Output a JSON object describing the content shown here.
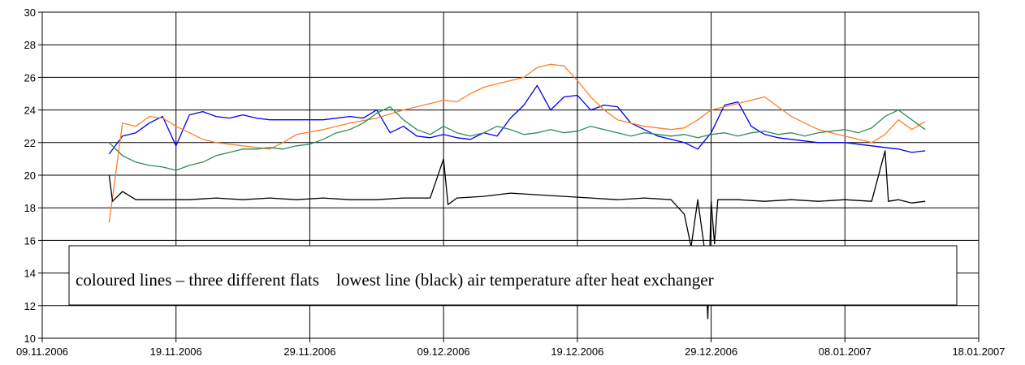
{
  "chart_data": {
    "type": "line",
    "title": "",
    "xlabel": "",
    "ylabel": "",
    "grid": true,
    "legend": "none",
    "x_range": [
      "2006-11-09",
      "2007-01-18"
    ],
    "ylim": [
      10,
      30
    ],
    "y_ticks": [
      10,
      12,
      14,
      16,
      18,
      20,
      22,
      24,
      26,
      28,
      30
    ],
    "x_ticks": [
      {
        "date": "2006-11-09",
        "label": "09.11.2006"
      },
      {
        "date": "2006-11-19",
        "label": "19.11.2006"
      },
      {
        "date": "2006-11-29",
        "label": "29.11.2006"
      },
      {
        "date": "2006-12-09",
        "label": "09.12.2006"
      },
      {
        "date": "2006-12-19",
        "label": "19.12.2006"
      },
      {
        "date": "2006-12-29",
        "label": "29.12.2006"
      },
      {
        "date": "2007-01-08",
        "label": "08.01.2007"
      },
      {
        "date": "2007-01-18",
        "label": "18.01.2007"
      }
    ],
    "annotation": "coloured lines – three different flats    lowest line (black) air temperature after heat exchanger",
    "series": [
      {
        "color": "#0000ee",
        "points": [
          [
            "2006-11-14",
            21.3
          ],
          [
            "2006-11-15",
            22.4
          ],
          [
            "2006-11-16",
            22.6
          ],
          [
            "2006-11-17",
            23.2
          ],
          [
            "2006-11-18",
            23.6
          ],
          [
            "2006-11-19",
            21.8
          ],
          [
            "2006-11-20",
            23.7
          ],
          [
            "2006-11-21",
            23.9
          ],
          [
            "2006-11-22",
            23.6
          ],
          [
            "2006-11-23",
            23.5
          ],
          [
            "2006-11-24",
            23.7
          ],
          [
            "2006-11-25",
            23.5
          ],
          [
            "2006-11-26",
            23.4
          ],
          [
            "2006-11-28",
            23.4
          ],
          [
            "2006-11-30",
            23.4
          ],
          [
            "2006-12-02",
            23.6
          ],
          [
            "2006-12-03",
            23.5
          ],
          [
            "2006-12-04",
            24.0
          ],
          [
            "2006-12-05",
            22.6
          ],
          [
            "2006-12-06",
            23.0
          ],
          [
            "2006-12-07",
            22.4
          ],
          [
            "2006-12-08",
            22.3
          ],
          [
            "2006-12-09",
            22.5
          ],
          [
            "2006-12-10",
            22.3
          ],
          [
            "2006-12-11",
            22.2
          ],
          [
            "2006-12-12",
            22.6
          ],
          [
            "2006-12-13",
            22.4
          ],
          [
            "2006-12-14",
            23.5
          ],
          [
            "2006-12-15",
            24.3
          ],
          [
            "2006-12-16",
            25.5
          ],
          [
            "2006-12-17",
            24.0
          ],
          [
            "2006-12-18",
            24.8
          ],
          [
            "2006-12-19",
            24.9
          ],
          [
            "2006-12-20",
            24.0
          ],
          [
            "2006-12-21",
            24.3
          ],
          [
            "2006-12-22",
            24.2
          ],
          [
            "2006-12-23",
            23.2
          ],
          [
            "2006-12-24",
            22.8
          ],
          [
            "2006-12-25",
            22.4
          ],
          [
            "2006-12-26",
            22.2
          ],
          [
            "2006-12-27",
            22.0
          ],
          [
            "2006-12-28",
            21.6
          ],
          [
            "2006-12-29",
            22.6
          ],
          [
            "2006-12-30",
            24.3
          ],
          [
            "2006-12-31",
            24.5
          ],
          [
            "2007-01-01",
            23.0
          ],
          [
            "2007-01-02",
            22.5
          ],
          [
            "2007-01-03",
            22.3
          ],
          [
            "2007-01-04",
            22.2
          ],
          [
            "2007-01-05",
            22.1
          ],
          [
            "2007-01-06",
            22.0
          ],
          [
            "2007-01-07",
            22.0
          ],
          [
            "2007-01-08",
            22.0
          ],
          [
            "2007-01-09",
            21.9
          ],
          [
            "2007-01-10",
            21.8
          ],
          [
            "2007-01-11",
            21.7
          ],
          [
            "2007-01-12",
            21.6
          ],
          [
            "2007-01-13",
            21.4
          ],
          [
            "2007-01-14",
            21.5
          ]
        ]
      },
      {
        "color": "#ff7f27",
        "points": [
          [
            "2006-11-14",
            17.1
          ],
          [
            "2006-11-15",
            23.2
          ],
          [
            "2006-11-16",
            23.0
          ],
          [
            "2006-11-17",
            23.6
          ],
          [
            "2006-11-18",
            23.5
          ],
          [
            "2006-11-19",
            23.0
          ],
          [
            "2006-11-20",
            22.6
          ],
          [
            "2006-11-21",
            22.2
          ],
          [
            "2006-11-22",
            22.0
          ],
          [
            "2006-11-23",
            21.9
          ],
          [
            "2006-11-24",
            21.8
          ],
          [
            "2006-11-25",
            21.7
          ],
          [
            "2006-11-26",
            21.6
          ],
          [
            "2006-11-27",
            22.0
          ],
          [
            "2006-11-28",
            22.5
          ],
          [
            "2006-11-30",
            22.8
          ],
          [
            "2006-12-02",
            23.2
          ],
          [
            "2006-12-04",
            23.5
          ],
          [
            "2006-12-06",
            24.0
          ],
          [
            "2006-12-08",
            24.4
          ],
          [
            "2006-12-09",
            24.6
          ],
          [
            "2006-12-10",
            24.5
          ],
          [
            "2006-12-11",
            25.0
          ],
          [
            "2006-12-12",
            25.4
          ],
          [
            "2006-12-13",
            25.6
          ],
          [
            "2006-12-14",
            25.8
          ],
          [
            "2006-12-15",
            26.0
          ],
          [
            "2006-12-16",
            26.6
          ],
          [
            "2006-12-17",
            26.8
          ],
          [
            "2006-12-18",
            26.7
          ],
          [
            "2006-12-19",
            25.8
          ],
          [
            "2006-12-20",
            24.8
          ],
          [
            "2006-12-21",
            24.0
          ],
          [
            "2006-12-22",
            23.4
          ],
          [
            "2006-12-23",
            23.2
          ],
          [
            "2006-12-24",
            23.0
          ],
          [
            "2006-12-25",
            22.9
          ],
          [
            "2006-12-26",
            22.8
          ],
          [
            "2006-12-27",
            22.9
          ],
          [
            "2006-12-28",
            23.4
          ],
          [
            "2006-12-29",
            24.0
          ],
          [
            "2006-12-30",
            24.2
          ],
          [
            "2006-12-31",
            24.4
          ],
          [
            "2007-01-01",
            24.6
          ],
          [
            "2007-01-02",
            24.8
          ],
          [
            "2007-01-03",
            24.2
          ],
          [
            "2007-01-04",
            23.6
          ],
          [
            "2007-01-05",
            23.2
          ],
          [
            "2007-01-06",
            22.8
          ],
          [
            "2007-01-07",
            22.6
          ],
          [
            "2007-01-08",
            22.4
          ],
          [
            "2007-01-09",
            22.2
          ],
          [
            "2007-01-10",
            22.0
          ],
          [
            "2007-01-11",
            22.5
          ],
          [
            "2007-01-12",
            23.4
          ],
          [
            "2007-01-13",
            22.8
          ],
          [
            "2007-01-14",
            23.3
          ]
        ]
      },
      {
        "color": "#2e8b57",
        "points": [
          [
            "2006-11-14",
            22.0
          ],
          [
            "2006-11-15",
            21.2
          ],
          [
            "2006-11-16",
            20.8
          ],
          [
            "2006-11-17",
            20.6
          ],
          [
            "2006-11-18",
            20.5
          ],
          [
            "2006-11-19",
            20.3
          ],
          [
            "2006-11-20",
            20.6
          ],
          [
            "2006-11-21",
            20.8
          ],
          [
            "2006-11-22",
            21.2
          ],
          [
            "2006-11-23",
            21.4
          ],
          [
            "2006-11-24",
            21.6
          ],
          [
            "2006-11-25",
            21.6
          ],
          [
            "2006-11-26",
            21.7
          ],
          [
            "2006-11-27",
            21.6
          ],
          [
            "2006-11-28",
            21.8
          ],
          [
            "2006-11-29",
            21.9
          ],
          [
            "2006-11-30",
            22.2
          ],
          [
            "2006-12-01",
            22.6
          ],
          [
            "2006-12-02",
            22.8
          ],
          [
            "2006-12-03",
            23.2
          ],
          [
            "2006-12-04",
            23.8
          ],
          [
            "2006-12-05",
            24.2
          ],
          [
            "2006-12-06",
            23.4
          ],
          [
            "2006-12-07",
            22.8
          ],
          [
            "2006-12-08",
            22.5
          ],
          [
            "2006-12-09",
            23.0
          ],
          [
            "2006-12-10",
            22.6
          ],
          [
            "2006-12-11",
            22.4
          ],
          [
            "2006-12-12",
            22.6
          ],
          [
            "2006-12-13",
            23.0
          ],
          [
            "2006-12-14",
            22.8
          ],
          [
            "2006-12-15",
            22.5
          ],
          [
            "2006-12-16",
            22.6
          ],
          [
            "2006-12-17",
            22.8
          ],
          [
            "2006-12-18",
            22.6
          ],
          [
            "2006-12-19",
            22.7
          ],
          [
            "2006-12-20",
            23.0
          ],
          [
            "2006-12-21",
            22.8
          ],
          [
            "2006-12-22",
            22.6
          ],
          [
            "2006-12-23",
            22.4
          ],
          [
            "2006-12-24",
            22.6
          ],
          [
            "2006-12-25",
            22.5
          ],
          [
            "2006-12-26",
            22.4
          ],
          [
            "2006-12-27",
            22.5
          ],
          [
            "2006-12-28",
            22.3
          ],
          [
            "2006-12-29",
            22.5
          ],
          [
            "2006-12-30",
            22.6
          ],
          [
            "2006-12-31",
            22.4
          ],
          [
            "2007-01-01",
            22.6
          ],
          [
            "2007-01-02",
            22.7
          ],
          [
            "2007-01-03",
            22.5
          ],
          [
            "2007-01-04",
            22.6
          ],
          [
            "2007-01-05",
            22.4
          ],
          [
            "2007-01-06",
            22.6
          ],
          [
            "2007-01-07",
            22.7
          ],
          [
            "2007-01-08",
            22.8
          ],
          [
            "2007-01-09",
            22.6
          ],
          [
            "2007-01-10",
            22.9
          ],
          [
            "2007-01-11",
            23.6
          ],
          [
            "2007-01-12",
            24.0
          ],
          [
            "2007-01-13",
            23.4
          ],
          [
            "2007-01-14",
            22.8
          ]
        ]
      },
      {
        "color": "#000000",
        "points": [
          [
            "2006-11-14",
            20.0
          ],
          [
            "2006-11-14T06",
            18.4
          ],
          [
            "2006-11-15",
            19.0
          ],
          [
            "2006-11-16",
            18.5
          ],
          [
            "2006-11-18",
            18.5
          ],
          [
            "2006-11-20",
            18.5
          ],
          [
            "2006-11-22",
            18.6
          ],
          [
            "2006-11-24",
            18.5
          ],
          [
            "2006-11-26",
            18.6
          ],
          [
            "2006-11-28",
            18.5
          ],
          [
            "2006-11-30",
            18.6
          ],
          [
            "2006-12-02",
            18.5
          ],
          [
            "2006-12-04",
            18.5
          ],
          [
            "2006-12-06",
            18.6
          ],
          [
            "2006-12-08",
            18.6
          ],
          [
            "2006-12-09",
            21.0
          ],
          [
            "2006-12-09T08",
            18.2
          ],
          [
            "2006-12-10",
            18.6
          ],
          [
            "2006-12-12",
            18.7
          ],
          [
            "2006-12-14",
            18.9
          ],
          [
            "2006-12-16",
            18.8
          ],
          [
            "2006-12-18",
            18.7
          ],
          [
            "2006-12-20",
            18.6
          ],
          [
            "2006-12-22",
            18.5
          ],
          [
            "2006-12-24",
            18.6
          ],
          [
            "2006-12-26",
            18.5
          ],
          [
            "2006-12-27",
            17.6
          ],
          [
            "2006-12-27T12",
            15.6
          ],
          [
            "2006-12-28",
            18.5
          ],
          [
            "2006-12-28T12",
            15.5
          ],
          [
            "2006-12-28T18",
            11.2
          ],
          [
            "2006-12-29",
            18.4
          ],
          [
            "2006-12-29T06",
            15.8
          ],
          [
            "2006-12-29T12",
            18.5
          ],
          [
            "2006-12-31",
            18.5
          ],
          [
            "2007-01-02",
            18.4
          ],
          [
            "2007-01-04",
            18.5
          ],
          [
            "2007-01-06",
            18.4
          ],
          [
            "2007-01-08",
            18.5
          ],
          [
            "2007-01-10",
            18.4
          ],
          [
            "2007-01-11",
            21.5
          ],
          [
            "2007-01-11T06",
            18.4
          ],
          [
            "2007-01-12",
            18.5
          ],
          [
            "2007-01-13",
            18.3
          ],
          [
            "2007-01-14",
            18.4
          ]
        ]
      }
    ]
  }
}
